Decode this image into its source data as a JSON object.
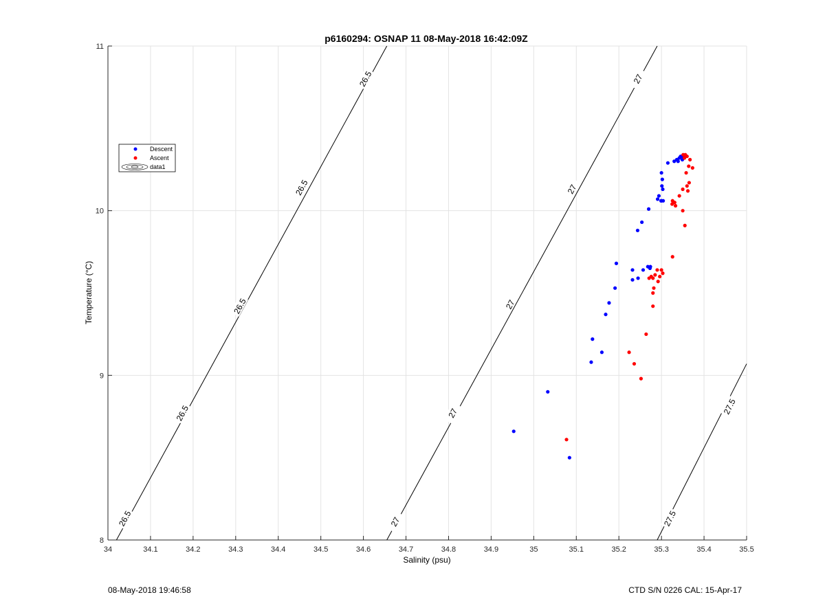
{
  "footer": {
    "timestamp": "08-May-2018 19:46:58",
    "instrument": "CTD S/N 0226  CAL: 15-Apr-17"
  },
  "chart_data": {
    "type": "scatter",
    "title": "p6160294: OSNAP 11 08-May-2018 16:42:09Z",
    "xlabel": "Salinity (psu)",
    "ylabel": "Temperature (°C)",
    "xlim": [
      34,
      35.5
    ],
    "ylim": [
      8,
      11
    ],
    "xticks": [
      34,
      34.1,
      34.2,
      34.3,
      34.4,
      34.5,
      34.6,
      34.7,
      34.8,
      34.9,
      35,
      35.1,
      35.2,
      35.3,
      35.4,
      35.5
    ],
    "xtick_labels": [
      "34",
      "34.1",
      "34.2",
      "34.3",
      "34.4",
      "34.5",
      "34.6",
      "34.7",
      "34.8",
      "34.9",
      "35",
      "35.1",
      "35.2",
      "35.3",
      "35.4",
      "35.5"
    ],
    "yticks": [
      8,
      9,
      10,
      11
    ],
    "ytick_labels": [
      "8",
      "9",
      "10",
      "11"
    ],
    "grid": true,
    "legend_position": "upper-left",
    "legend": [
      "Descent",
      "Ascent",
      "data1"
    ],
    "series": [
      {
        "name": "Descent",
        "color": "#0000ff",
        "points": [
          [
            34.953,
            8.66
          ],
          [
            35.033,
            8.9
          ],
          [
            35.084,
            8.5
          ],
          [
            35.135,
            9.08
          ],
          [
            35.138,
            9.22
          ],
          [
            35.16,
            9.14
          ],
          [
            35.169,
            9.37
          ],
          [
            35.177,
            9.44
          ],
          [
            35.191,
            9.53
          ],
          [
            35.194,
            9.68
          ],
          [
            35.232,
            9.64
          ],
          [
            35.232,
            9.58
          ],
          [
            35.245,
            9.59
          ],
          [
            35.257,
            9.64
          ],
          [
            35.268,
            9.66
          ],
          [
            35.273,
            9.65
          ],
          [
            35.274,
            9.66
          ],
          [
            35.244,
            9.88
          ],
          [
            35.254,
            9.93
          ],
          [
            35.27,
            10.01
          ],
          [
            35.291,
            10.07
          ],
          [
            35.294,
            10.09
          ],
          [
            35.299,
            10.06
          ],
          [
            35.3,
            10.06
          ],
          [
            35.301,
            10.15
          ],
          [
            35.302,
            10.19
          ],
          [
            35.303,
            10.13
          ],
          [
            35.3,
            10.23
          ],
          [
            35.304,
            10.06
          ],
          [
            35.315,
            10.29
          ],
          [
            35.33,
            10.3
          ],
          [
            35.336,
            10.31
          ],
          [
            35.339,
            10.3
          ],
          [
            35.342,
            10.32
          ],
          [
            35.345,
            10.33
          ],
          [
            35.349,
            10.31
          ],
          [
            35.351,
            10.32
          ],
          [
            35.353,
            10.33
          ]
        ]
      },
      {
        "name": "Ascent",
        "color": "#ff0000",
        "points": [
          [
            35.077,
            8.61
          ],
          [
            35.224,
            9.14
          ],
          [
            35.236,
            9.07
          ],
          [
            35.252,
            8.98
          ],
          [
            35.264,
            9.25
          ],
          [
            35.28,
            9.42
          ],
          [
            35.28,
            9.5
          ],
          [
            35.282,
            9.53
          ],
          [
            35.28,
            9.59
          ],
          [
            35.285,
            9.61
          ],
          [
            35.29,
            9.64
          ],
          [
            35.292,
            9.57
          ],
          [
            35.296,
            9.6
          ],
          [
            35.3,
            9.64
          ],
          [
            35.303,
            9.62
          ],
          [
            35.276,
            9.6
          ],
          [
            35.271,
            9.59
          ],
          [
            35.326,
            9.72
          ],
          [
            35.355,
            9.91
          ],
          [
            35.35,
            10.0
          ],
          [
            35.342,
            10.09
          ],
          [
            35.331,
            10.05
          ],
          [
            35.326,
            10.06
          ],
          [
            35.325,
            10.04
          ],
          [
            35.333,
            10.03
          ],
          [
            35.35,
            10.13
          ],
          [
            35.362,
            10.12
          ],
          [
            35.36,
            10.15
          ],
          [
            35.365,
            10.17
          ],
          [
            35.358,
            10.23
          ],
          [
            35.364,
            10.27
          ],
          [
            35.373,
            10.26
          ],
          [
            35.367,
            10.31
          ],
          [
            35.36,
            10.33
          ],
          [
            35.356,
            10.34
          ],
          [
            35.354,
            10.32
          ],
          [
            35.351,
            10.34
          ]
        ]
      }
    ],
    "isopycnals": [
      {
        "label": "26.5",
        "points": [
          [
            34.02,
            8.0
          ],
          [
            34.655,
            11.0
          ]
        ],
        "label_positions": [
          [
            34.04,
            8.13
          ],
          [
            34.175,
            8.77
          ],
          [
            34.31,
            9.42
          ],
          [
            34.455,
            10.14
          ],
          [
            34.605,
            10.8
          ]
        ]
      },
      {
        "label": "27",
        "points": [
          [
            34.655,
            8.0
          ],
          [
            35.29,
            11.0
          ]
        ],
        "label_positions": [
          [
            34.675,
            8.11
          ],
          [
            34.81,
            8.77
          ],
          [
            34.945,
            9.43
          ],
          [
            35.09,
            10.13
          ],
          [
            35.245,
            10.8
          ]
        ]
      },
      {
        "label": "27.5",
        "points": [
          [
            35.29,
            8.0
          ],
          [
            35.5,
            9.07
          ]
        ],
        "label_positions": [
          [
            35.32,
            8.13
          ],
          [
            35.46,
            8.81
          ]
        ]
      }
    ]
  }
}
